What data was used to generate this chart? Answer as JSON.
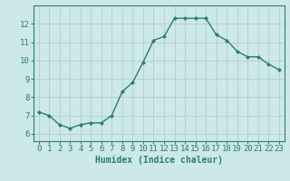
{
  "x": [
    0,
    1,
    2,
    3,
    4,
    5,
    6,
    7,
    8,
    9,
    10,
    11,
    12,
    13,
    14,
    15,
    16,
    17,
    18,
    19,
    20,
    21,
    22,
    23
  ],
  "y": [
    7.2,
    7.0,
    6.5,
    6.3,
    6.5,
    6.6,
    6.6,
    7.0,
    8.3,
    8.8,
    9.9,
    11.1,
    11.3,
    12.3,
    12.3,
    12.3,
    12.3,
    11.4,
    11.1,
    10.5,
    10.2,
    10.2,
    9.8,
    9.5
  ],
  "line_color": "#2e7d6e",
  "marker": "D",
  "markersize": 2.0,
  "linewidth": 1.0,
  "bg_color": "#cce8e8",
  "grid_color": "#b0c8c8",
  "xlabel": "Humidex (Indice chaleur)",
  "xlabel_fontsize": 7,
  "tick_fontsize": 6.5,
  "yticks": [
    6,
    7,
    8,
    9,
    10,
    11,
    12
  ],
  "ylim": [
    5.6,
    13.0
  ],
  "xlim": [
    -0.5,
    23.5
  ],
  "tick_color": "#2e7d6e",
  "spine_color": "#2e7d6e"
}
